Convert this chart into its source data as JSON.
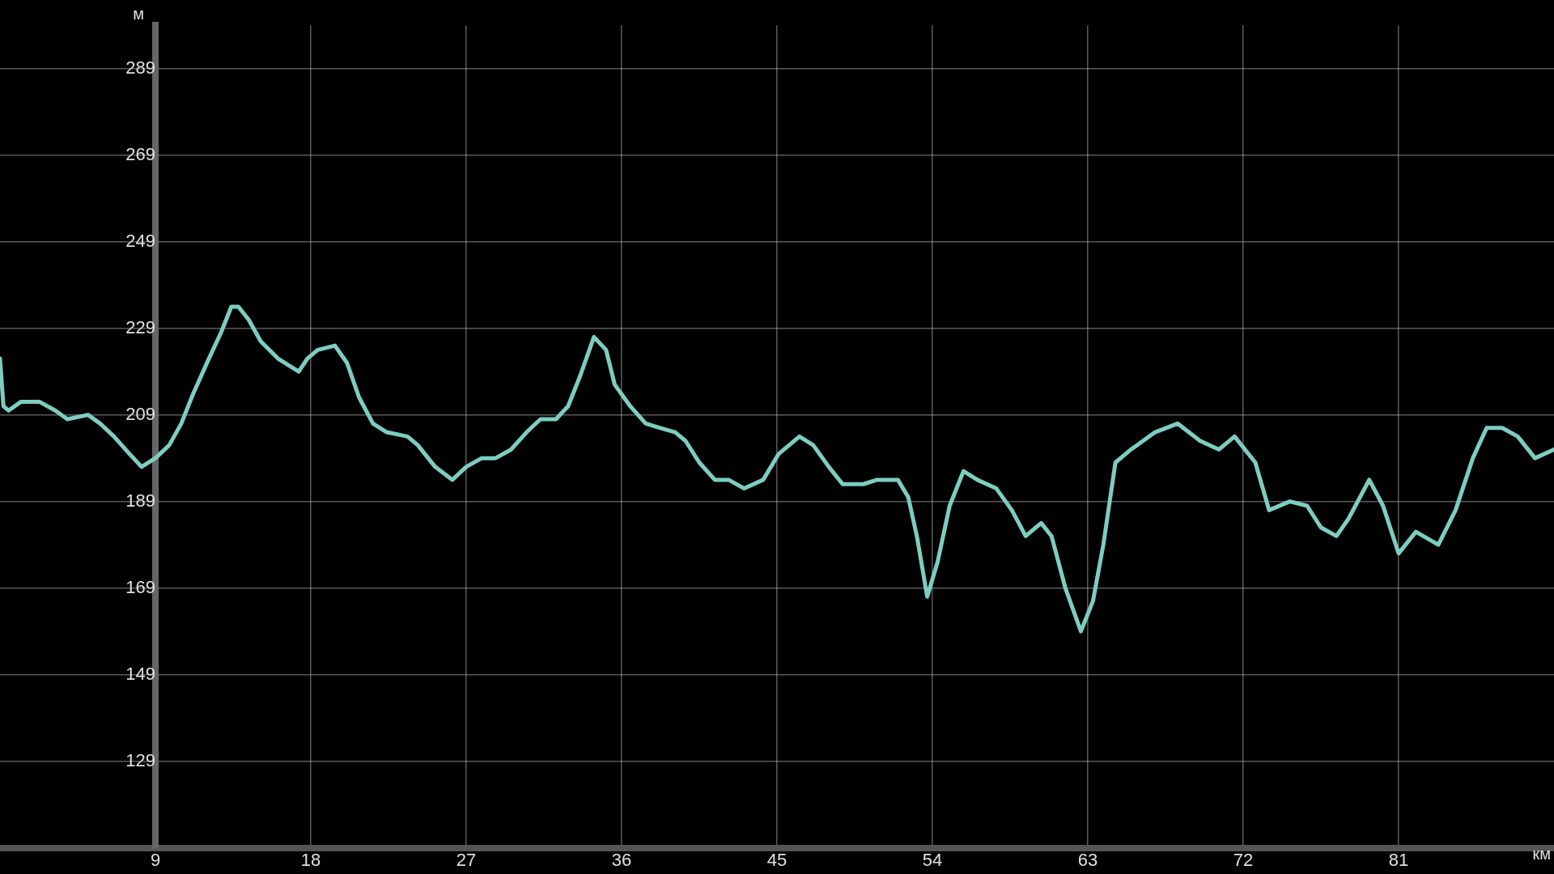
{
  "chart_data": {
    "type": "line",
    "xlabel": "км",
    "ylabel": "м",
    "color": "#7ecdc1",
    "grid": true,
    "xlim": [
      0,
      90
    ],
    "ylim": [
      109,
      299
    ],
    "xticks": [
      9,
      18,
      27,
      36,
      45,
      54,
      63,
      72,
      81
    ],
    "yticks": [
      129,
      149,
      169,
      189,
      209,
      229,
      249,
      269,
      289
    ],
    "x": [
      0,
      0.2,
      0.5,
      1.2,
      2.3,
      3.2,
      3.9,
      5.1,
      5.8,
      6.6,
      7.5,
      8.2,
      9.0,
      9.8,
      10.5,
      11.2,
      12.1,
      12.8,
      13.4,
      13.8,
      14.4,
      15.1,
      16.1,
      17.3,
      17.8,
      18.4,
      19.4,
      20.1,
      20.8,
      21.6,
      22.4,
      23.6,
      24.2,
      25.2,
      26.2,
      27.0,
      27.9,
      28.7,
      29.6,
      30.5,
      31.3,
      32.2,
      32.9,
      33.6,
      34.4,
      35.1,
      35.6,
      36.5,
      37.4,
      38.2,
      39.1,
      39.7,
      40.5,
      41.4,
      42.2,
      43.1,
      44.2,
      45.1,
      46.3,
      47.1,
      48.0,
      48.8,
      50.0,
      50.8,
      52.0,
      52.6,
      53.1,
      53.7,
      54.3,
      55.0,
      55.8,
      56.6,
      57.7,
      58.6,
      59.4,
      60.3,
      60.9,
      61.7,
      62.6,
      63.3,
      63.9,
      64.6,
      65.5,
      66.9,
      68.2,
      69.5,
      70.6,
      71.5,
      72.7,
      73.5,
      74.7,
      75.7,
      76.5,
      77.4,
      78.1,
      79.3,
      80.1,
      81.0,
      82.0,
      83.3,
      84.3,
      85.3,
      86.1,
      87.0,
      87.9,
      88.9,
      90.0
    ],
    "values": [
      222,
      211,
      210,
      212,
      212,
      210,
      208,
      209,
      207,
      204,
      200,
      197,
      199,
      202,
      207,
      214,
      222,
      228,
      234,
      234,
      231,
      226,
      222,
      219,
      222,
      224,
      225,
      221,
      213,
      207,
      205,
      204,
      202,
      197,
      194,
      197,
      199,
      199,
      201,
      205,
      208,
      208,
      211,
      218,
      227,
      224,
      216,
      211,
      207,
      206,
      205,
      203,
      198,
      194,
      194,
      192,
      194,
      200,
      204,
      202,
      197,
      193,
      193,
      194,
      194,
      190,
      181,
      167,
      175,
      188,
      196,
      194,
      192,
      187,
      181,
      184,
      181,
      169,
      159,
      166,
      179,
      198,
      201,
      205,
      207,
      203,
      201,
      204,
      198,
      187,
      189,
      188,
      183,
      181,
      185,
      194,
      188,
      177,
      182,
      179,
      187,
      199,
      206,
      206,
      204,
      199,
      201
    ]
  }
}
